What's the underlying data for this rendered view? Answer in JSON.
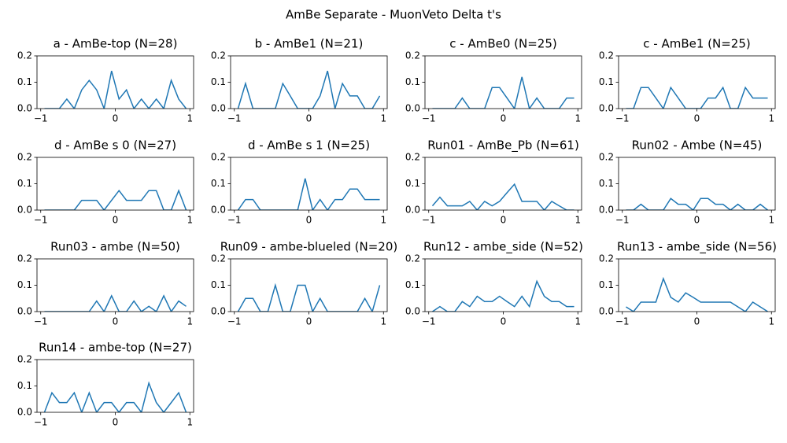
{
  "title": "AmBe Separate - MuonVeto Delta t's",
  "chart_data": [
    {
      "type": "line",
      "title": "a - AmBe-top (N=28)",
      "color": "#1f77b4",
      "x": [
        -0.95,
        -0.85,
        -0.75,
        -0.65,
        -0.55,
        -0.45,
        -0.35,
        -0.25,
        -0.15,
        -0.05,
        0.05,
        0.15,
        0.25,
        0.35,
        0.45,
        0.55,
        0.65,
        0.75,
        0.85,
        0.95
      ],
      "values": [
        0,
        0,
        0,
        0.036,
        0,
        0.071,
        0.107,
        0.071,
        0,
        0.143,
        0.036,
        0.071,
        0,
        0.036,
        0,
        0.036,
        0,
        0.107,
        0.036,
        0
      ],
      "xlim": [
        -1.05,
        1.05
      ],
      "ylim": [
        0,
        0.2
      ],
      "xticks": [
        {
          "value": -1,
          "label": "−1"
        },
        0,
        1
      ],
      "yticks": [
        {
          "value": 0,
          "label": "0.0"
        },
        0.1,
        0.2
      ]
    },
    {
      "type": "line",
      "title": "b - AmBe1 (N=21)",
      "color": "#1f77b4",
      "x": [
        -0.95,
        -0.85,
        -0.75,
        -0.65,
        -0.55,
        -0.45,
        -0.35,
        -0.25,
        -0.15,
        -0.05,
        0.05,
        0.15,
        0.25,
        0.35,
        0.45,
        0.55,
        0.65,
        0.75,
        0.85,
        0.95
      ],
      "values": [
        0,
        0.095,
        0,
        0,
        0,
        0,
        0.095,
        0.048,
        0,
        0,
        0,
        0.048,
        0.143,
        0,
        0.095,
        0.048,
        0.048,
        0,
        0,
        0.048
      ],
      "xlim": [
        -1.05,
        1.05
      ],
      "ylim": [
        0,
        0.2
      ],
      "xticks": [
        {
          "value": -1,
          "label": "−1"
        },
        0,
        1
      ],
      "yticks": [
        {
          "value": 0,
          "label": "0.0"
        },
        0.1,
        0.2
      ]
    },
    {
      "type": "line",
      "title": "c - AmBe0 (N=25)",
      "color": "#1f77b4",
      "x": [
        -0.95,
        -0.85,
        -0.75,
        -0.65,
        -0.55,
        -0.45,
        -0.35,
        -0.25,
        -0.15,
        -0.05,
        0.05,
        0.15,
        0.25,
        0.35,
        0.45,
        0.55,
        0.65,
        0.75,
        0.85,
        0.95
      ],
      "values": [
        0,
        0,
        0,
        0,
        0.04,
        0,
        0,
        0,
        0.08,
        0.08,
        0.04,
        0,
        0.12,
        0,
        0.04,
        0,
        0,
        0,
        0.04,
        0.04
      ],
      "xlim": [
        -1.05,
        1.05
      ],
      "ylim": [
        0,
        0.2
      ],
      "xticks": [
        {
          "value": -1,
          "label": "−1"
        },
        0,
        1
      ],
      "yticks": [
        {
          "value": 0,
          "label": "0.0"
        },
        0.1,
        0.2
      ]
    },
    {
      "type": "line",
      "title": "c - AmBe1 (N=25)",
      "color": "#1f77b4",
      "x": [
        -0.95,
        -0.85,
        -0.75,
        -0.65,
        -0.55,
        -0.45,
        -0.35,
        -0.25,
        -0.15,
        -0.05,
        0.05,
        0.15,
        0.25,
        0.35,
        0.45,
        0.55,
        0.65,
        0.75,
        0.85,
        0.95
      ],
      "values": [
        0,
        0,
        0.08,
        0.08,
        0.04,
        0,
        0.08,
        0.04,
        0,
        0,
        0,
        0.04,
        0.04,
        0.08,
        0,
        0,
        0.08,
        0.04,
        0.04,
        0.04
      ],
      "xlim": [
        -1.05,
        1.05
      ],
      "ylim": [
        0,
        0.2
      ],
      "xticks": [
        {
          "value": -1,
          "label": "−1"
        },
        0,
        1
      ],
      "yticks": [
        {
          "value": 0,
          "label": "0.0"
        },
        0.1,
        0.2
      ]
    },
    {
      "type": "line",
      "title": "d - AmBe s 0 (N=27)",
      "color": "#1f77b4",
      "x": [
        -0.95,
        -0.85,
        -0.75,
        -0.65,
        -0.55,
        -0.45,
        -0.35,
        -0.25,
        -0.15,
        -0.05,
        0.05,
        0.15,
        0.25,
        0.35,
        0.45,
        0.55,
        0.65,
        0.75,
        0.85,
        0.95
      ],
      "values": [
        0,
        0,
        0,
        0,
        0,
        0.037,
        0.037,
        0.037,
        0,
        0.037,
        0.074,
        0.037,
        0.037,
        0.037,
        0.074,
        0.074,
        0,
        0,
        0.074,
        0
      ],
      "xlim": [
        -1.05,
        1.05
      ],
      "ylim": [
        0,
        0.2
      ],
      "xticks": [
        {
          "value": -1,
          "label": "−1"
        },
        0,
        1
      ],
      "yticks": [
        {
          "value": 0,
          "label": "0.0"
        },
        0.1,
        0.2
      ]
    },
    {
      "type": "line",
      "title": "d - AmBe s 1 (N=25)",
      "color": "#1f77b4",
      "x": [
        -0.95,
        -0.85,
        -0.75,
        -0.65,
        -0.55,
        -0.45,
        -0.35,
        -0.25,
        -0.15,
        -0.05,
        0.05,
        0.15,
        0.25,
        0.35,
        0.45,
        0.55,
        0.65,
        0.75,
        0.85,
        0.95
      ],
      "values": [
        0,
        0.04,
        0.04,
        0,
        0,
        0,
        0,
        0,
        0,
        0.12,
        0,
        0.04,
        0,
        0.04,
        0.04,
        0.08,
        0.08,
        0.04,
        0.04,
        0.04
      ],
      "xlim": [
        -1.05,
        1.05
      ],
      "ylim": [
        0,
        0.2
      ],
      "xticks": [
        {
          "value": -1,
          "label": "−1"
        },
        0,
        1
      ],
      "yticks": [
        {
          "value": 0,
          "label": "0.0"
        },
        0.1,
        0.2
      ]
    },
    {
      "type": "line",
      "title": "Run01 - AmBe_Pb (N=61)",
      "color": "#1f77b4",
      "x": [
        -0.95,
        -0.85,
        -0.75,
        -0.65,
        -0.55,
        -0.45,
        -0.35,
        -0.25,
        -0.15,
        -0.05,
        0.05,
        0.15,
        0.25,
        0.35,
        0.45,
        0.55,
        0.65,
        0.75,
        0.85,
        0.95
      ],
      "values": [
        0.016,
        0.049,
        0.016,
        0.016,
        0.016,
        0.033,
        0,
        0.033,
        0.016,
        0.033,
        0.066,
        0.098,
        0.033,
        0.033,
        0.033,
        0,
        0.033,
        0.016,
        0,
        0
      ],
      "xlim": [
        -1.05,
        1.05
      ],
      "ylim": [
        0,
        0.2
      ],
      "xticks": [
        {
          "value": -1,
          "label": "−1"
        },
        0,
        1
      ],
      "yticks": [
        {
          "value": 0,
          "label": "0.0"
        },
        0.1,
        0.2
      ]
    },
    {
      "type": "line",
      "title": "Run02 - Ambe (N=45)",
      "color": "#1f77b4",
      "x": [
        -0.95,
        -0.85,
        -0.75,
        -0.65,
        -0.55,
        -0.45,
        -0.35,
        -0.25,
        -0.15,
        -0.05,
        0.05,
        0.15,
        0.25,
        0.35,
        0.45,
        0.55,
        0.65,
        0.75,
        0.85,
        0.95
      ],
      "values": [
        0,
        0,
        0.022,
        0,
        0,
        0,
        0.044,
        0.022,
        0.022,
        0,
        0.044,
        0.044,
        0.022,
        0.022,
        0,
        0.022,
        0,
        0,
        0.022,
        0
      ],
      "xlim": [
        -1.05,
        1.05
      ],
      "ylim": [
        0,
        0.2
      ],
      "xticks": [
        {
          "value": -1,
          "label": "−1"
        },
        0,
        1
      ],
      "yticks": [
        {
          "value": 0,
          "label": "0.0"
        },
        0.1,
        0.2
      ]
    },
    {
      "type": "line",
      "title": "Run03 - ambe (N=50)",
      "color": "#1f77b4",
      "x": [
        -0.95,
        -0.85,
        -0.75,
        -0.65,
        -0.55,
        -0.45,
        -0.35,
        -0.25,
        -0.15,
        -0.05,
        0.05,
        0.15,
        0.25,
        0.35,
        0.45,
        0.55,
        0.65,
        0.75,
        0.85,
        0.95
      ],
      "values": [
        0,
        0,
        0,
        0,
        0,
        0,
        0,
        0.04,
        0,
        0.06,
        0,
        0,
        0.04,
        0,
        0.02,
        0,
        0.06,
        0,
        0.04,
        0.02
      ],
      "xlim": [
        -1.05,
        1.05
      ],
      "ylim": [
        0,
        0.2
      ],
      "xticks": [
        {
          "value": -1,
          "label": "−1"
        },
        0,
        1
      ],
      "yticks": [
        {
          "value": 0,
          "label": "0.0"
        },
        0.1,
        0.2
      ]
    },
    {
      "type": "line",
      "title": "Run09 - ambe-blueled (N=20)",
      "color": "#1f77b4",
      "x": [
        -0.95,
        -0.85,
        -0.75,
        -0.65,
        -0.55,
        -0.45,
        -0.35,
        -0.25,
        -0.15,
        -0.05,
        0.05,
        0.15,
        0.25,
        0.35,
        0.45,
        0.55,
        0.65,
        0.75,
        0.85,
        0.95
      ],
      "values": [
        0,
        0.05,
        0.05,
        0,
        0,
        0.1,
        0,
        0,
        0.1,
        0.1,
        0,
        0.05,
        0,
        0,
        0,
        0,
        0,
        0.05,
        0,
        0.1
      ],
      "xlim": [
        -1.05,
        1.05
      ],
      "ylim": [
        0,
        0.2
      ],
      "xticks": [
        {
          "value": -1,
          "label": "−1"
        },
        0,
        1
      ],
      "yticks": [
        {
          "value": 0,
          "label": "0.0"
        },
        0.1,
        0.2
      ]
    },
    {
      "type": "line",
      "title": "Run12 - ambe_side (N=52)",
      "color": "#1f77b4",
      "x": [
        -0.95,
        -0.85,
        -0.75,
        -0.65,
        -0.55,
        -0.45,
        -0.35,
        -0.25,
        -0.15,
        -0.05,
        0.05,
        0.15,
        0.25,
        0.35,
        0.45,
        0.55,
        0.65,
        0.75,
        0.85,
        0.95
      ],
      "values": [
        0,
        0.019,
        0,
        0,
        0.038,
        0.019,
        0.058,
        0.038,
        0.038,
        0.058,
        0.038,
        0.019,
        0.058,
        0.019,
        0.115,
        0.058,
        0.038,
        0.038,
        0.019,
        0.019
      ],
      "xlim": [
        -1.05,
        1.05
      ],
      "ylim": [
        0,
        0.2
      ],
      "xticks": [
        {
          "value": -1,
          "label": "−1"
        },
        0,
        1
      ],
      "yticks": [
        {
          "value": 0,
          "label": "0.0"
        },
        0.1,
        0.2
      ]
    },
    {
      "type": "line",
      "title": "Run13 - ambe_side (N=56)",
      "color": "#1f77b4",
      "x": [
        -0.95,
        -0.85,
        -0.75,
        -0.65,
        -0.55,
        -0.45,
        -0.35,
        -0.25,
        -0.15,
        -0.05,
        0.05,
        0.15,
        0.25,
        0.35,
        0.45,
        0.55,
        0.65,
        0.75,
        0.85,
        0.95
      ],
      "values": [
        0.018,
        0,
        0.036,
        0.036,
        0.036,
        0.125,
        0.054,
        0.036,
        0.071,
        0.054,
        0.036,
        0.036,
        0.036,
        0.036,
        0.036,
        0.018,
        0,
        0.036,
        0.018,
        0
      ],
      "xlim": [
        -1.05,
        1.05
      ],
      "ylim": [
        0,
        0.2
      ],
      "xticks": [
        {
          "value": -1,
          "label": "−1"
        },
        0,
        1
      ],
      "yticks": [
        {
          "value": 0,
          "label": "0.0"
        },
        0.1,
        0.2
      ]
    },
    {
      "type": "line",
      "title": "Run14 - ambe-top (N=27)",
      "color": "#1f77b4",
      "x": [
        -0.95,
        -0.85,
        -0.75,
        -0.65,
        -0.55,
        -0.45,
        -0.35,
        -0.25,
        -0.15,
        -0.05,
        0.05,
        0.15,
        0.25,
        0.35,
        0.45,
        0.55,
        0.65,
        0.75,
        0.85,
        0.95
      ],
      "values": [
        0,
        0.074,
        0.037,
        0.037,
        0.074,
        0,
        0.074,
        0,
        0.037,
        0.037,
        0,
        0.037,
        0.037,
        0,
        0.111,
        0.037,
        0,
        0.037,
        0.074,
        0
      ],
      "xlim": [
        -1.05,
        1.05
      ],
      "ylim": [
        0,
        0.2
      ],
      "xticks": [
        {
          "value": -1,
          "label": "−1"
        },
        0,
        1
      ],
      "yticks": [
        {
          "value": 0,
          "label": "0.0"
        },
        0.1,
        0.2
      ]
    }
  ]
}
